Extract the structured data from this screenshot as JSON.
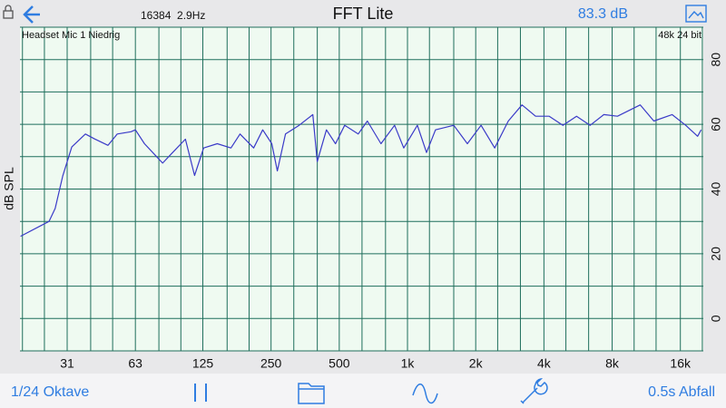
{
  "header": {
    "info": "16384  2.9Hz",
    "title": "FFT Lite",
    "level": "83.3 dB"
  },
  "chart_data": {
    "type": "line",
    "input_label": "Headset Mic 1 Niedrig",
    "format_label": "48k 24 bit",
    "ylabel": "dB SPL",
    "xscale": "log",
    "color": "#3a3ac8",
    "x": [
      19.6,
      26.2,
      27.9,
      30.1,
      33,
      37.9,
      41.6,
      47.7,
      52.4,
      60.2,
      63,
      69.1,
      75.8,
      83.1,
      91.2,
      104.7,
      114.9,
      126,
      144.7,
      166.3,
      182.4,
      209.5,
      229.8,
      252,
      266.4,
      289.5,
      332.6,
      382,
      400,
      438.8,
      481.3,
      528,
      606,
      665,
      764,
      877,
      963,
      1106,
      1213,
      1330,
      1600,
      1838,
      2111,
      2425,
      2786,
      3200,
      3676,
      4222,
      4851,
      5572,
      6400,
      7352,
      8445,
      10640,
      12222,
      14710,
      16893,
      19054,
      19763
    ],
    "values": [
      25.4,
      30,
      34,
      44,
      53,
      57,
      55.5,
      53.5,
      57,
      57.7,
      58.3,
      54,
      51,
      48,
      51,
      55.4,
      44.2,
      52.7,
      54,
      52.7,
      57,
      52.7,
      58.3,
      54,
      45.6,
      57,
      59.7,
      63,
      48.5,
      58.3,
      54,
      59.7,
      57,
      61,
      54,
      59.7,
      52.7,
      59.7,
      51.3,
      58.3,
      59.7,
      54,
      59.7,
      52.7,
      61,
      66,
      62.5,
      62.5,
      59.7,
      62.5,
      59.7,
      63,
      62.5,
      66,
      61,
      63,
      59.7,
      56.3,
      58.3
    ],
    "xlim": [
      19.5,
      20200
    ],
    "ylim": [
      -10,
      90
    ],
    "xticks": [
      {
        "value": 31.5,
        "label": "31"
      },
      63,
      125,
      250,
      500,
      {
        "value": 1000,
        "label": "1k"
      },
      {
        "value": 2000,
        "label": "2k"
      },
      {
        "value": 4000,
        "label": "4k"
      },
      {
        "value": 8000,
        "label": "8k"
      },
      {
        "value": 16000,
        "label": "16k"
      }
    ],
    "x_minor_ticks": [
      20,
      25,
      31.5,
      40,
      50,
      63,
      80,
      100,
      125,
      160,
      200,
      250,
      315,
      400,
      500,
      630,
      800,
      1000,
      1250,
      1600,
      2000,
      2500,
      3150,
      4000,
      5000,
      6300,
      8000,
      10000,
      12500,
      16000,
      20000
    ],
    "yticks": [
      0,
      20,
      40,
      60,
      80
    ],
    "y_minor_ticks": [
      -10,
      0,
      10,
      20,
      30,
      40,
      50,
      60,
      70,
      80,
      90
    ],
    "grid": true
  },
  "toolbar": {
    "resolution": "1/24 Oktave",
    "decay": "0.5s Abfall"
  }
}
